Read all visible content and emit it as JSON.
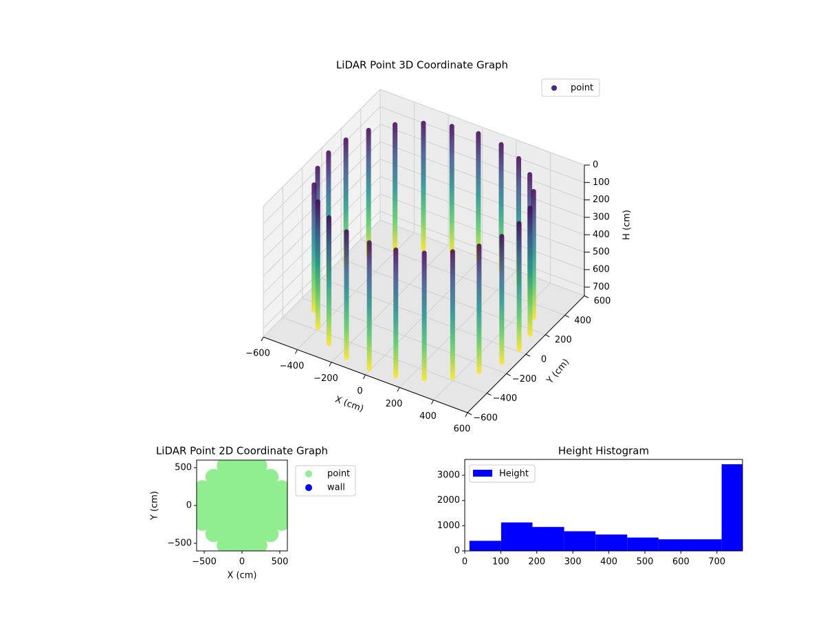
{
  "chart_data": [
    {
      "type": "scatter3d",
      "title": "LiDAR Point 3D Coordinate Graph",
      "xlabel": "X (cm)",
      "ylabel": "Y (cm)",
      "zlabel": "H (cm)",
      "xlim": [
        -600,
        600
      ],
      "ylim": [
        -600,
        600
      ],
      "zlim": [
        750,
        0
      ],
      "xticks": [
        {
          "value": -600,
          "label": "−600"
        },
        {
          "value": -400,
          "label": "−400"
        },
        {
          "value": -200,
          "label": "−200"
        },
        0,
        200,
        400,
        600
      ],
      "yticks": [
        {
          "value": -600,
          "label": "−600"
        },
        {
          "value": -400,
          "label": "−400"
        },
        {
          "value": -200,
          "label": "−200"
        },
        0,
        200,
        400,
        600
      ],
      "zticks": [
        0,
        100,
        200,
        300,
        400,
        500,
        600,
        700
      ],
      "colormap": [
        "#440154",
        "#3b528b",
        "#21918c",
        "#5ec962",
        "#fde725"
      ],
      "legend": "upper right",
      "series": [
        {
          "name": "point",
          "color": "#472c7a",
          "x": [
            560,
            541,
            485,
            396,
            280,
            145,
            0,
            -145,
            -280,
            -396,
            -485,
            -541,
            -560,
            -541,
            -485,
            -396,
            -280,
            -145,
            0,
            145,
            280,
            396,
            485,
            541
          ],
          "y": [
            0,
            145,
            280,
            396,
            485,
            541,
            560,
            541,
            485,
            396,
            280,
            145,
            0,
            -145,
            -280,
            -396,
            -485,
            -541,
            -560,
            -541,
            -485,
            -396,
            -280,
            -145
          ]
        }
      ]
    },
    {
      "type": "scatter",
      "title": "LiDAR Point 2D Coordinate Graph",
      "xlabel": "X (cm)",
      "ylabel": "Y (cm)",
      "xlim": [
        -600,
        600
      ],
      "ylim": [
        -600,
        600
      ],
      "xticks": [
        {
          "value": -500,
          "label": "−500"
        },
        0,
        500
      ],
      "yticks": [
        {
          "value": -500,
          "label": "−500"
        },
        0,
        500
      ],
      "legend": "outside upper right",
      "series": [
        {
          "name": "point",
          "color": "#90ee90",
          "x": [
            -225,
            -75,
            75,
            225,
            -375,
            -225,
            -75,
            75,
            225,
            375,
            -525,
            -375,
            -225,
            -75,
            75,
            225,
            375,
            525,
            -525,
            -375,
            -225,
            -75,
            75,
            225,
            375,
            525,
            -525,
            -375,
            -225,
            -75,
            75,
            225,
            375,
            525,
            -525,
            -375,
            -225,
            -75,
            75,
            225,
            375,
            525,
            -375,
            -225,
            -75,
            75,
            225,
            375,
            -225,
            -75,
            75,
            225
          ],
          "y": [
            525,
            525,
            525,
            525,
            375,
            375,
            375,
            375,
            375,
            375,
            225,
            225,
            225,
            225,
            225,
            225,
            225,
            225,
            75,
            75,
            75,
            75,
            75,
            75,
            75,
            75,
            -75,
            -75,
            -75,
            -75,
            -75,
            -75,
            -75,
            -75,
            -225,
            -225,
            -225,
            -225,
            -225,
            -225,
            -225,
            -225,
            -375,
            -375,
            -375,
            -375,
            -375,
            -375,
            -525,
            -525,
            -525,
            -525
          ]
        },
        {
          "name": "wall",
          "color": "#0000ff",
          "x": [],
          "y": []
        }
      ]
    },
    {
      "type": "histogram",
      "title": "Height Histogram",
      "label": "Height",
      "color": "#0000ff",
      "bins": [
        13,
        101,
        188,
        276,
        363,
        451,
        538,
        626,
        713,
        771
      ],
      "values": [
        400,
        1130,
        950,
        780,
        650,
        530,
        460,
        460,
        3440
      ],
      "xlim": [
        0,
        771
      ],
      "ylim": [
        0,
        3630
      ],
      "xticks": [
        0,
        100,
        200,
        300,
        400,
        500,
        600,
        700
      ],
      "yticks": [
        0,
        1000,
        2000,
        3000
      ],
      "legend": "upper left"
    }
  ]
}
